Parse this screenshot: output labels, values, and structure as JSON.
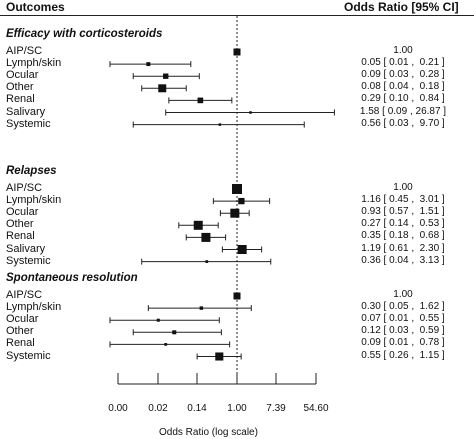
{
  "header": {
    "col_outcomes": "Outcomes",
    "col_or": "Odds Ratio [95% CI]"
  },
  "chart_data": {
    "type": "forest",
    "x_scale": "log",
    "xlabel": "Odds Ratio (log scale)",
    "x_tick_labels": [
      "0.00",
      "0.02",
      "0.14",
      "1.00",
      "7.39",
      "54.60"
    ],
    "reference_line": 1.0,
    "sections": [
      {
        "title": "Efficacy with corticosteroids",
        "rows": [
          {
            "label": "AIP/SC",
            "or": 1.0,
            "ci": null,
            "text": "1.00"
          },
          {
            "label": "Lymph/skin",
            "or": 0.05,
            "ci": [
              0.01,
              0.21
            ],
            "text": "0.05 [ 0.01 ,  0.21 ]"
          },
          {
            "label": "Ocular",
            "or": 0.09,
            "ci": [
              0.03,
              0.28
            ],
            "text": "0.09 [ 0.03 ,  0.28 ]"
          },
          {
            "label": "Other",
            "or": 0.08,
            "ci": [
              0.04,
              0.18
            ],
            "text": "0.08 [ 0.04 ,  0.18 ]"
          },
          {
            "label": "Renal",
            "or": 0.29,
            "ci": [
              0.1,
              0.84
            ],
            "text": "0.29 [ 0.10 ,  0.84 ]"
          },
          {
            "label": "Salivary",
            "or": 1.58,
            "ci": [
              0.09,
              26.87
            ],
            "text": "1.58 [ 0.09 , 26.87 ]"
          },
          {
            "label": "Systemic",
            "or": 0.56,
            "ci": [
              0.03,
              9.7
            ],
            "text": "0.56 [ 0.03 ,  9.70 ]"
          }
        ]
      },
      {
        "title": "Relapses",
        "rows": [
          {
            "label": "AIP/SC",
            "or": 1.0,
            "ci": null,
            "text": "1.00"
          },
          {
            "label": "Lymph/skin",
            "or": 1.16,
            "ci": [
              0.45,
              3.01
            ],
            "text": "1.16 [ 0.45 ,  3.01 ]"
          },
          {
            "label": "Ocular",
            "or": 0.93,
            "ci": [
              0.57,
              1.51
            ],
            "text": "0.93 [ 0.57 ,  1.51 ]"
          },
          {
            "label": "Other",
            "or": 0.27,
            "ci": [
              0.14,
              0.53
            ],
            "text": "0.27 [ 0.14 ,  0.53 ]"
          },
          {
            "label": "Renal",
            "or": 0.35,
            "ci": [
              0.18,
              0.68
            ],
            "text": "0.35 [ 0.18 ,  0.68 ]"
          },
          {
            "label": "Salivary",
            "or": 1.19,
            "ci": [
              0.61,
              2.3
            ],
            "text": "1.19 [ 0.61 ,  2.30 ]"
          },
          {
            "label": "Systemic",
            "or": 0.36,
            "ci": [
              0.04,
              3.13
            ],
            "text": "0.36 [ 0.04 ,  3.13 ]"
          }
        ]
      },
      {
        "title": "Spontaneous resolution",
        "rows": [
          {
            "label": "AIP/SC",
            "or": 1.0,
            "ci": null,
            "text": "1.00"
          },
          {
            "label": "Lymph/skin",
            "or": 0.3,
            "ci": [
              0.05,
              1.62
            ],
            "text": "0.30 [ 0.05 ,  1.62 ]"
          },
          {
            "label": "Ocular",
            "or": 0.07,
            "ci": [
              0.01,
              0.55
            ],
            "text": "0.07 [ 0.01 ,  0.55 ]"
          },
          {
            "label": "Other",
            "or": 0.12,
            "ci": [
              0.03,
              0.59
            ],
            "text": "0.12 [ 0.03 ,  0.59 ]"
          },
          {
            "label": "Renal",
            "or": 0.09,
            "ci": [
              0.01,
              0.78
            ],
            "text": "0.09 [ 0.01 ,  0.78 ]"
          },
          {
            "label": "Systemic",
            "or": 0.55,
            "ci": [
              0.26,
              1.15
            ],
            "text": "0.55 [ 0.26 ,  1.15 ]"
          }
        ]
      }
    ]
  }
}
